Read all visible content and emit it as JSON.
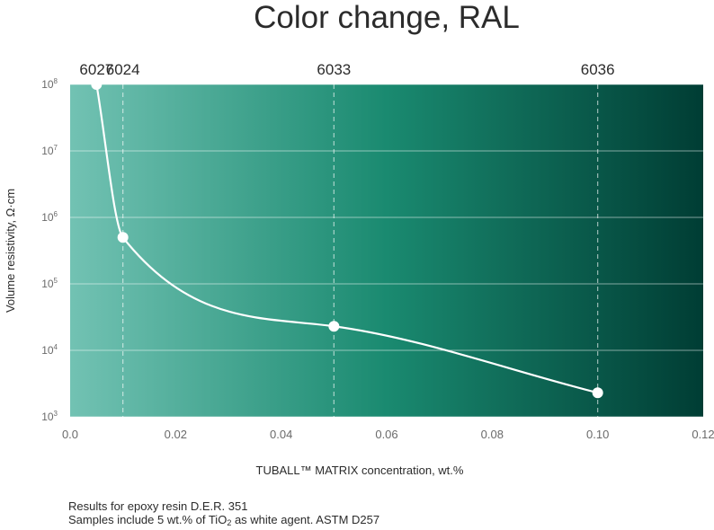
{
  "chart_data": {
    "type": "line",
    "title": "Color change, RAL",
    "xlabel": "TUBALL™ MATRIX concentration, wt.%",
    "ylabel": "Volume resistivity, Ω·cm",
    "xlim": [
      0,
      0.12
    ],
    "x_ticks": [
      "0.0",
      "0.02",
      "0.04",
      "0.06",
      "0.08",
      "0.10",
      "0.12"
    ],
    "x_tick_values": [
      0,
      0.02,
      0.04,
      0.06,
      0.08,
      0.1,
      0.12
    ],
    "y_scale": "log",
    "ylim": [
      1000,
      100000000
    ],
    "y_ticks": [
      {
        "base": "10",
        "exp": "8",
        "value": 100000000
      },
      {
        "base": "10",
        "exp": "7",
        "value": 10000000
      },
      {
        "base": "10",
        "exp": "6",
        "value": 1000000
      },
      {
        "base": "10",
        "exp": "5",
        "value": 100000
      },
      {
        "base": "10",
        "exp": "4",
        "value": 10000
      },
      {
        "base": "10",
        "exp": "3",
        "value": 1000
      }
    ],
    "grid": true,
    "points": [
      {
        "x": 0.005,
        "y": 100000000
      },
      {
        "x": 0.01,
        "y": 500000
      },
      {
        "x": 0.05,
        "y": 23000
      },
      {
        "x": 0.1,
        "y": 2300
      }
    ],
    "ral_markers": [
      {
        "label": "6027",
        "x": 0.005,
        "dashed": false
      },
      {
        "label": "6024",
        "x": 0.01,
        "dashed": true
      },
      {
        "label": "6033",
        "x": 0.05,
        "dashed": true
      },
      {
        "label": "6036",
        "x": 0.1,
        "dashed": true
      }
    ],
    "background_gradient": [
      "#72c2b3",
      "#1a8a70",
      "#003d34"
    ]
  },
  "notes": {
    "line1": "Results for epoxy resin D.E.R. 351",
    "line2_pre": "Samples include 5 wt.% of TiO",
    "line2_sub": "2",
    "line2_post": " as white agent. ASTM D257"
  }
}
